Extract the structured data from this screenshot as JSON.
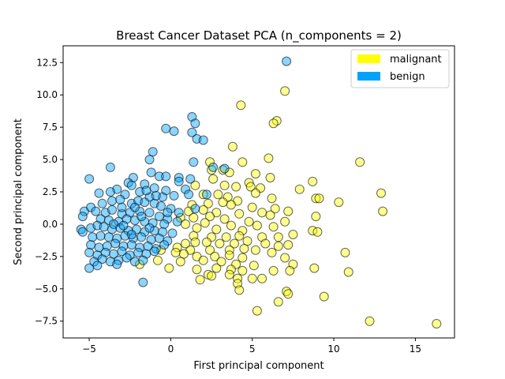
{
  "chart_data": {
    "type": "scatter",
    "title": "Breast Cancer Dataset PCA (n_components = 2)",
    "xlabel": "First principal component",
    "ylabel": "Second principal component",
    "xlim": [
      -6.6,
      17.4
    ],
    "ylim": [
      -8.8,
      13.8
    ],
    "xticks": [
      -5,
      0,
      5,
      10,
      15
    ],
    "yticks": [
      -7.5,
      -5.0,
      -2.5,
      0.0,
      2.5,
      5.0,
      7.5,
      10.0,
      12.5
    ],
    "grid": false,
    "legend_position": "top-right",
    "series": [
      {
        "name": "malignant",
        "color": "#ffff00",
        "points": [
          [
            7.0,
            10.3
          ],
          [
            6.5,
            8.0
          ],
          [
            6.3,
            7.8
          ],
          [
            4.3,
            9.2
          ],
          [
            3.8,
            6.0
          ],
          [
            6.0,
            5.1
          ],
          [
            11.6,
            4.8
          ],
          [
            2.4,
            4.8
          ],
          [
            4.4,
            4.8
          ],
          [
            2.5,
            4.2
          ],
          [
            3.2,
            4.2
          ],
          [
            3.6,
            4.0
          ],
          [
            5.2,
            3.9
          ],
          [
            6.1,
            3.6
          ],
          [
            8.7,
            3.3
          ],
          [
            4.8,
            3.2
          ],
          [
            4.9,
            2.9
          ],
          [
            5.5,
            2.8
          ],
          [
            3.3,
            3.0
          ],
          [
            4.0,
            2.9
          ],
          [
            1.5,
            3.0
          ],
          [
            2.6,
            3.5
          ],
          [
            7.9,
            2.7
          ],
          [
            5.2,
            2.4
          ],
          [
            6.2,
            2.0
          ],
          [
            12.9,
            2.4
          ],
          [
            8.9,
            2.0
          ],
          [
            9.1,
            2.0
          ],
          [
            10.3,
            1.7
          ],
          [
            2.0,
            2.3
          ],
          [
            2.9,
            2.3
          ],
          [
            3.5,
            2.1
          ],
          [
            4.1,
            1.8
          ],
          [
            1.3,
            1.5
          ],
          [
            2.3,
            1.6
          ],
          [
            3.2,
            1.7
          ],
          [
            3.7,
            1.5
          ],
          [
            5.0,
            1.3
          ],
          [
            6.4,
            1.2
          ],
          [
            7.2,
            1.0
          ],
          [
            13.0,
            1.0
          ],
          [
            1.1,
            1.0
          ],
          [
            2.0,
            1.1
          ],
          [
            2.8,
            0.9
          ],
          [
            4.2,
            0.8
          ],
          [
            5.6,
            0.9
          ],
          [
            6.1,
            0.7
          ],
          [
            8.9,
            0.6
          ],
          [
            0.6,
            0.5
          ],
          [
            1.4,
            0.5
          ],
          [
            2.4,
            0.6
          ],
          [
            3.3,
            0.4
          ],
          [
            4.8,
            0.2
          ],
          [
            7.0,
            0.2
          ],
          [
            0.9,
            0.0
          ],
          [
            2.1,
            0.1
          ],
          [
            3.7,
            -0.1
          ],
          [
            5.3,
            -0.1
          ],
          [
            6.3,
            -0.2
          ],
          [
            1.6,
            -0.3
          ],
          [
            2.8,
            -0.4
          ],
          [
            4.4,
            -0.5
          ],
          [
            8.7,
            -0.5
          ],
          [
            9.0,
            -0.6
          ],
          [
            7.5,
            -0.8
          ],
          [
            1.4,
            -0.9
          ],
          [
            2.5,
            -1.0
          ],
          [
            3.4,
            -1.0
          ],
          [
            4.2,
            -0.9
          ],
          [
            5.6,
            -1.0
          ],
          [
            6.6,
            -1.0
          ],
          [
            1.5,
            -1.4
          ],
          [
            2.2,
            -1.4
          ],
          [
            3.0,
            -1.5
          ],
          [
            3.9,
            -1.5
          ],
          [
            4.7,
            -1.3
          ],
          [
            5.8,
            -1.5
          ],
          [
            6.6,
            -1.7
          ],
          [
            7.2,
            -1.6
          ],
          [
            0.4,
            -1.8
          ],
          [
            1.2,
            -2.0
          ],
          [
            2.4,
            -2.0
          ],
          [
            3.6,
            -2.0
          ],
          [
            4.5,
            -1.9
          ],
          [
            5.2,
            -2.0
          ],
          [
            0.8,
            -2.3
          ],
          [
            1.6,
            -2.5
          ],
          [
            2.7,
            -2.5
          ],
          [
            3.6,
            -2.4
          ],
          [
            4.4,
            -2.6
          ],
          [
            6.2,
            -2.2
          ],
          [
            7.0,
            -2.6
          ],
          [
            10.7,
            -2.2
          ],
          [
            -0.8,
            -2.8
          ],
          [
            0.6,
            -2.9
          ],
          [
            2.0,
            -2.8
          ],
          [
            3.1,
            -2.9
          ],
          [
            4.0,
            -3.1
          ],
          [
            5.1,
            -3.2
          ],
          [
            8.8,
            -3.4
          ],
          [
            7.5,
            -3.1
          ],
          [
            -1.9,
            -3.1
          ],
          [
            -0.1,
            -3.4
          ],
          [
            1.6,
            -3.5
          ],
          [
            2.8,
            -3.4
          ],
          [
            3.7,
            -3.5
          ],
          [
            4.4,
            -3.6
          ],
          [
            6.3,
            -3.6
          ],
          [
            7.3,
            -3.6
          ],
          [
            10.9,
            -3.7
          ],
          [
            2.3,
            -3.9
          ],
          [
            2.5,
            -4.0
          ],
          [
            3.6,
            -3.9
          ],
          [
            4.1,
            -4.2
          ],
          [
            5.0,
            -4.2
          ],
          [
            5.6,
            -4.2
          ],
          [
            1.8,
            -4.3
          ],
          [
            4.1,
            -4.6
          ],
          [
            4.2,
            -5.1
          ],
          [
            7.1,
            -5.2
          ],
          [
            7.2,
            -5.4
          ],
          [
            9.4,
            -5.6
          ],
          [
            6.6,
            -6.0
          ],
          [
            5.3,
            -6.7
          ],
          [
            12.2,
            -7.5
          ],
          [
            16.3,
            -7.7
          ],
          [
            0.3,
            -2.2
          ],
          [
            0.9,
            -1.5
          ],
          [
            -0.6,
            -2.0
          ]
        ]
      },
      {
        "name": "benign",
        "color": "#00a2ff",
        "points": [
          [
            7.1,
            12.6
          ],
          [
            1.3,
            8.3
          ],
          [
            1.5,
            7.8
          ],
          [
            1.3,
            7.1
          ],
          [
            -0.3,
            7.4
          ],
          [
            0.2,
            7.2
          ],
          [
            1.6,
            6.6
          ],
          [
            2.0,
            6.5
          ],
          [
            -1.1,
            5.6
          ],
          [
            1.4,
            4.8
          ],
          [
            -1.3,
            5.0
          ],
          [
            -3.7,
            4.4
          ],
          [
            -1.2,
            4.0
          ],
          [
            -0.7,
            3.7
          ],
          [
            -0.3,
            3.7
          ],
          [
            0.5,
            3.6
          ],
          [
            0.5,
            3.3
          ],
          [
            0.9,
            2.7
          ],
          [
            1.2,
            3.5
          ],
          [
            2.6,
            4.4
          ],
          [
            3.3,
            4.3
          ],
          [
            -5.0,
            3.5
          ],
          [
            -2.3,
            3.6
          ],
          [
            -2.6,
            3.2
          ],
          [
            -2.4,
            3.0
          ],
          [
            -1.6,
            3.1
          ],
          [
            -1.0,
            2.8
          ],
          [
            -0.3,
            2.6
          ],
          [
            -3.3,
            2.7
          ],
          [
            -3.7,
            2.5
          ],
          [
            -4.4,
            2.4
          ],
          [
            -1.9,
            2.5
          ],
          [
            -2.8,
            2.3
          ],
          [
            -1.3,
            2.1
          ],
          [
            -0.5,
            2.1
          ],
          [
            0.2,
            2.2
          ],
          [
            1.1,
            2.3
          ],
          [
            2.2,
            2.3
          ],
          [
            -5.3,
            1.0
          ],
          [
            -5.4,
            0.6
          ],
          [
            -4.9,
            1.3
          ],
          [
            -4.2,
            1.6
          ],
          [
            -3.6,
            1.8
          ],
          [
            -3.1,
            1.9
          ],
          [
            -2.4,
            1.6
          ],
          [
            -2.0,
            1.8
          ],
          [
            -1.6,
            1.7
          ],
          [
            -1.0,
            1.6
          ],
          [
            -0.6,
            1.4
          ],
          [
            0.0,
            1.2
          ],
          [
            0.5,
            0.9
          ],
          [
            1.5,
            1.2
          ],
          [
            -4.6,
            1.0
          ],
          [
            -4.0,
            0.9
          ],
          [
            -3.6,
            1.1
          ],
          [
            -3.0,
            0.8
          ],
          [
            -2.5,
            0.9
          ],
          [
            -1.9,
            1.0
          ],
          [
            -1.3,
            0.9
          ],
          [
            -0.7,
            0.6
          ],
          [
            -0.2,
            0.4
          ],
          [
            -4.3,
            0.4
          ],
          [
            -3.8,
            0.3
          ],
          [
            -3.2,
            0.2
          ],
          [
            -2.7,
            0.4
          ],
          [
            -2.2,
            0.3
          ],
          [
            -1.6,
            0.2
          ],
          [
            -1.1,
            0.1
          ],
          [
            -0.4,
            0.0
          ],
          [
            0.4,
            0.2
          ],
          [
            -5.5,
            -0.4
          ],
          [
            -5.4,
            -0.6
          ],
          [
            -4.9,
            -0.3
          ],
          [
            -4.5,
            -0.1
          ],
          [
            -4.1,
            -0.2
          ],
          [
            -3.6,
            -0.4
          ],
          [
            -3.1,
            -0.3
          ],
          [
            -2.6,
            -0.5
          ],
          [
            -2.1,
            -0.4
          ],
          [
            -1.6,
            -0.6
          ],
          [
            -1.0,
            -0.5
          ],
          [
            -0.5,
            -0.6
          ],
          [
            0.1,
            -0.7
          ],
          [
            -4.8,
            -1.0
          ],
          [
            -4.3,
            -0.9
          ],
          [
            -3.8,
            -1.0
          ],
          [
            -3.3,
            -1.1
          ],
          [
            -2.8,
            -0.9
          ],
          [
            -2.3,
            -1.1
          ],
          [
            -1.8,
            -1.0
          ],
          [
            -1.2,
            -1.2
          ],
          [
            -0.7,
            -1.1
          ],
          [
            -0.2,
            -1.3
          ],
          [
            -4.9,
            -1.6
          ],
          [
            -4.4,
            -1.8
          ],
          [
            -3.9,
            -1.7
          ],
          [
            -3.4,
            -1.5
          ],
          [
            -2.9,
            -1.7
          ],
          [
            -2.4,
            -1.6
          ],
          [
            -1.9,
            -1.8
          ],
          [
            -1.4,
            -1.7
          ],
          [
            -0.9,
            -1.9
          ],
          [
            -0.4,
            -1.6
          ],
          [
            -5.0,
            -2.2
          ],
          [
            -4.5,
            -2.4
          ],
          [
            -4.0,
            -2.2
          ],
          [
            -3.5,
            -2.3
          ],
          [
            -3.0,
            -2.1
          ],
          [
            -2.5,
            -2.4
          ],
          [
            -2.0,
            -2.2
          ],
          [
            -1.5,
            -2.3
          ],
          [
            -1.0,
            -2.1
          ],
          [
            -4.7,
            -2.9
          ],
          [
            -4.2,
            -2.7
          ],
          [
            -3.7,
            -2.9
          ],
          [
            -3.2,
            -2.8
          ],
          [
            -2.7,
            -2.6
          ],
          [
            -2.2,
            -2.9
          ],
          [
            -1.7,
            -2.8
          ],
          [
            -4.5,
            -3.2
          ],
          [
            -5.0,
            -3.4
          ],
          [
            -3.3,
            -3.1
          ],
          [
            -1.7,
            -4.5
          ],
          [
            -3.5,
            0.0
          ],
          [
            -2.9,
            -0.1
          ],
          [
            -1.8,
            0.6
          ],
          [
            -2.2,
            1.3
          ],
          [
            -3.0,
            1.3
          ],
          [
            -0.9,
            2.2
          ],
          [
            -1.5,
            2.6
          ],
          [
            -0.2,
            0.9
          ],
          [
            -1.3,
            -0.3
          ],
          [
            -2.4,
            -0.8
          ]
        ]
      }
    ]
  }
}
